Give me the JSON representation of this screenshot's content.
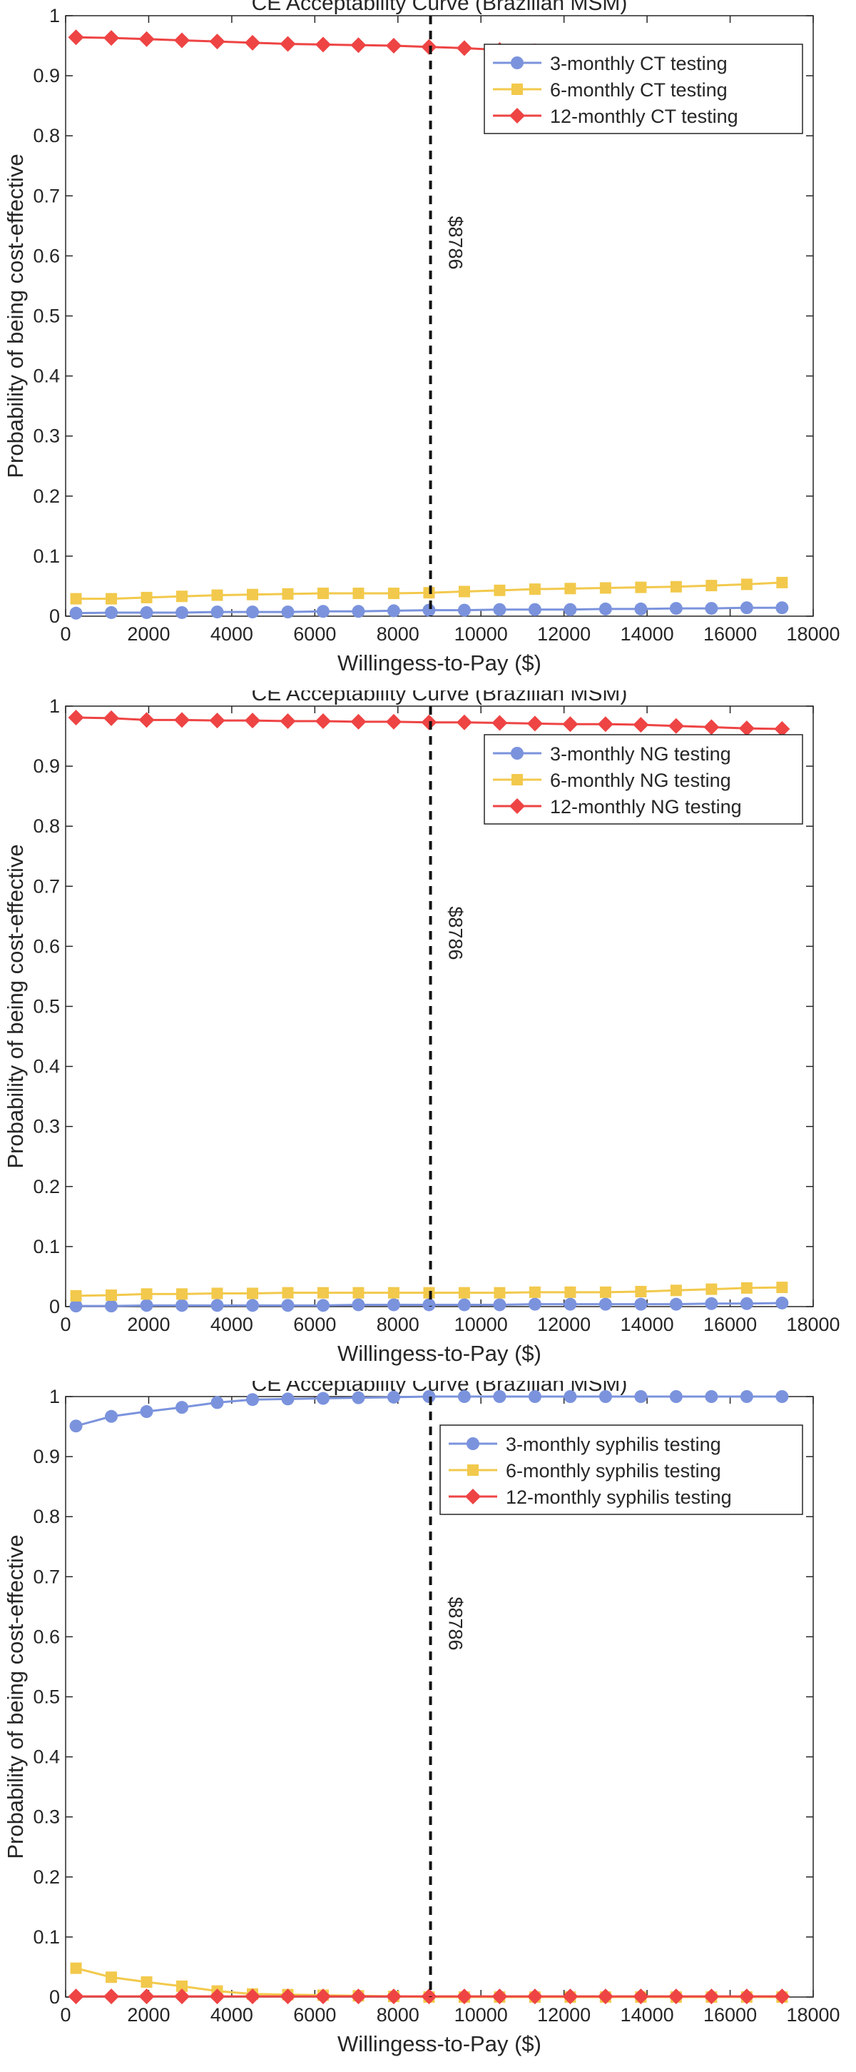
{
  "chart_data": [
    {
      "type": "line",
      "title": "CE Acceptability Curve (Brazilian MSM)",
      "xlabel": "Willingess-to-Pay ($)",
      "ylabel": "Probability of being cost-effective",
      "xlim": [
        0,
        18000
      ],
      "ylim": [
        0,
        1
      ],
      "xticks": [
        0,
        2000,
        4000,
        6000,
        8000,
        10000,
        12000,
        14000,
        16000,
        18000
      ],
      "yticks": [
        0,
        0.1,
        0.2,
        0.3,
        0.4,
        0.5,
        0.6,
        0.7,
        0.8,
        0.9,
        1
      ],
      "grid": false,
      "legend_position": "top-right",
      "annotation": {
        "x": 8786,
        "label": "$8786"
      },
      "x": [
        250,
        1100,
        1950,
        2800,
        3650,
        4500,
        5350,
        6200,
        7050,
        7900,
        8750,
        9600,
        10450,
        11300,
        12150,
        13000,
        13850,
        14700,
        15550,
        16400,
        17250
      ],
      "series": [
        {
          "name": "3-monthly CT testing",
          "color": "#7b93dd",
          "marker": "circle",
          "values": [
            0.005,
            0.006,
            0.006,
            0.006,
            0.007,
            0.007,
            0.007,
            0.008,
            0.008,
            0.009,
            0.01,
            0.01,
            0.011,
            0.011,
            0.011,
            0.012,
            0.012,
            0.013,
            0.013,
            0.014,
            0.014
          ]
        },
        {
          "name": "6-monthly CT testing",
          "color": "#f2c94c",
          "marker": "square",
          "values": [
            0.029,
            0.029,
            0.031,
            0.033,
            0.035,
            0.036,
            0.037,
            0.038,
            0.038,
            0.038,
            0.039,
            0.041,
            0.043,
            0.045,
            0.046,
            0.047,
            0.048,
            0.049,
            0.051,
            0.053,
            0.056
          ]
        },
        {
          "name": "12-monthly CT testing",
          "color": "#ee4444",
          "marker": "diamond",
          "values": [
            0.964,
            0.963,
            0.961,
            0.959,
            0.957,
            0.955,
            0.953,
            0.952,
            0.951,
            0.95,
            0.948,
            0.946,
            0.943,
            0.941,
            0.939,
            0.938,
            0.937,
            0.935,
            0.933,
            0.931,
            0.928
          ]
        }
      ]
    },
    {
      "type": "line",
      "title": "CE Acceptability Curve (Brazilian MSM)",
      "xlabel": "Willingess-to-Pay ($)",
      "ylabel": "Probability of being cost-effective",
      "xlim": [
        0,
        18000
      ],
      "ylim": [
        0,
        1
      ],
      "xticks": [
        0,
        2000,
        4000,
        6000,
        8000,
        10000,
        12000,
        14000,
        16000,
        18000
      ],
      "yticks": [
        0,
        0.1,
        0.2,
        0.3,
        0.4,
        0.5,
        0.6,
        0.7,
        0.8,
        0.9,
        1
      ],
      "grid": false,
      "legend_position": "top-right",
      "annotation": {
        "x": 8786,
        "label": "$8786"
      },
      "x": [
        250,
        1100,
        1950,
        2800,
        3650,
        4500,
        5350,
        6200,
        7050,
        7900,
        8750,
        9600,
        10450,
        11300,
        12150,
        13000,
        13850,
        14700,
        15550,
        16400,
        17250
      ],
      "series": [
        {
          "name": "3-monthly NG testing",
          "color": "#7b93dd",
          "marker": "circle",
          "values": [
            0.001,
            0.001,
            0.002,
            0.002,
            0.002,
            0.002,
            0.002,
            0.002,
            0.003,
            0.003,
            0.003,
            0.003,
            0.003,
            0.004,
            0.004,
            0.004,
            0.004,
            0.004,
            0.005,
            0.005,
            0.006
          ]
        },
        {
          "name": "6-monthly NG testing",
          "color": "#f2c94c",
          "marker": "square",
          "values": [
            0.018,
            0.019,
            0.021,
            0.021,
            0.022,
            0.022,
            0.023,
            0.023,
            0.023,
            0.023,
            0.023,
            0.023,
            0.023,
            0.024,
            0.024,
            0.024,
            0.025,
            0.027,
            0.029,
            0.031,
            0.032
          ]
        },
        {
          "name": "12-monthly NG testing",
          "color": "#ee4444",
          "marker": "diamond",
          "values": [
            0.981,
            0.98,
            0.977,
            0.977,
            0.976,
            0.976,
            0.975,
            0.975,
            0.974,
            0.974,
            0.973,
            0.973,
            0.972,
            0.971,
            0.97,
            0.97,
            0.969,
            0.967,
            0.965,
            0.963,
            0.962
          ]
        }
      ]
    },
    {
      "type": "line",
      "title": "CE Acceptability Curve (Brazilian MSM)",
      "xlabel": "Willingess-to-Pay ($)",
      "ylabel": "Probability of being cost-effective",
      "xlim": [
        0,
        18000
      ],
      "ylim": [
        0,
        1
      ],
      "xticks": [
        0,
        2000,
        4000,
        6000,
        8000,
        10000,
        12000,
        14000,
        16000,
        18000
      ],
      "yticks": [
        0,
        0.1,
        0.2,
        0.3,
        0.4,
        0.5,
        0.6,
        0.7,
        0.8,
        0.9,
        1
      ],
      "grid": false,
      "legend_position": "top-right",
      "annotation": {
        "x": 8786,
        "label": "$8786"
      },
      "x": [
        250,
        1100,
        1950,
        2800,
        3650,
        4500,
        5350,
        6200,
        7050,
        7900,
        8750,
        9600,
        10450,
        11300,
        12150,
        13000,
        13850,
        14700,
        15550,
        16400,
        17250
      ],
      "series": [
        {
          "name": "3-monthly syphilis testing",
          "color": "#7b93dd",
          "marker": "circle",
          "values": [
            0.951,
            0.967,
            0.975,
            0.982,
            0.99,
            0.995,
            0.996,
            0.997,
            0.998,
            0.999,
            1,
            1,
            1,
            1,
            1,
            1,
            1,
            1,
            1,
            1,
            1
          ]
        },
        {
          "name": "6-monthly syphilis testing",
          "color": "#f2c94c",
          "marker": "square",
          "values": [
            0.048,
            0.033,
            0.025,
            0.018,
            0.01,
            0.005,
            0.004,
            0.003,
            0.002,
            0.001,
            0,
            0,
            0,
            0,
            0,
            0,
            0,
            0,
            0,
            0,
            0
          ]
        },
        {
          "name": "12-monthly syphilis testing",
          "color": "#ee4444",
          "marker": "diamond",
          "values": [
            0.001,
            0.001,
            0.001,
            0.001,
            0.001,
            0.001,
            0.001,
            0.001,
            0.001,
            0.001,
            0.001,
            0.001,
            0.001,
            0.001,
            0.001,
            0.001,
            0.001,
            0.001,
            0.001,
            0.001,
            0.001
          ]
        }
      ]
    }
  ]
}
